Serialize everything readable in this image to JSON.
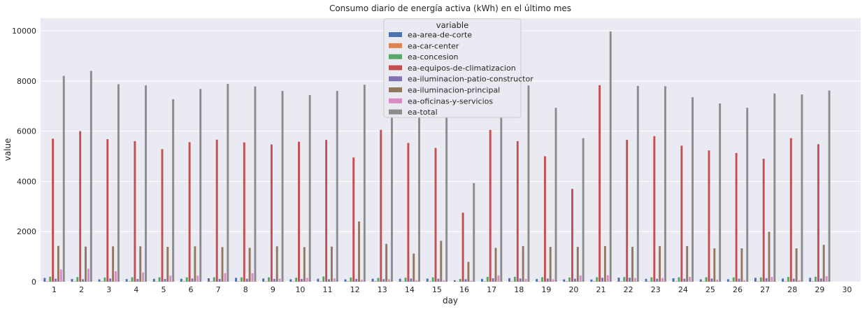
{
  "chart_data": {
    "type": "bar",
    "title": "Consumo diario de energía activa (kWh) en el último mes",
    "xlabel": "day",
    "ylabel": "value",
    "ylim": [
      0,
      10500
    ],
    "yticks": [
      0,
      2000,
      4000,
      6000,
      8000,
      10000
    ],
    "grid": true,
    "legend_title": "variable",
    "legend_position": "top-center",
    "categories": [
      "1",
      "2",
      "3",
      "4",
      "5",
      "6",
      "7",
      "8",
      "9",
      "10",
      "11",
      "12",
      "13",
      "14",
      "15",
      "16",
      "17",
      "18",
      "19",
      "20",
      "21",
      "22",
      "23",
      "24",
      "25",
      "26",
      "27",
      "28",
      "29",
      "30"
    ],
    "series": [
      {
        "name": "ea-area-de-corte",
        "color": "#4c72b0",
        "values": [
          150,
          110,
          95,
          105,
          115,
          120,
          140,
          155,
          130,
          100,
          120,
          95,
          120,
          120,
          125,
          60,
          115,
          145,
          110,
          95,
          90,
          165,
          115,
          140,
          95,
          100,
          155,
          130,
          155,
          0
        ]
      },
      {
        "name": "ea-car-center",
        "color": "#dd8452",
        "values": [
          20,
          15,
          20,
          20,
          15,
          20,
          20,
          20,
          20,
          15,
          20,
          20,
          25,
          15,
          20,
          10,
          20,
          20,
          20,
          20,
          20,
          20,
          20,
          20,
          20,
          20,
          20,
          20,
          20,
          0
        ]
      },
      {
        "name": "ea-concesion",
        "color": "#55a868",
        "values": [
          200,
          185,
          165,
          180,
          180,
          175,
          175,
          175,
          175,
          160,
          210,
          170,
          150,
          160,
          175,
          110,
          195,
          195,
          180,
          170,
          180,
          185,
          175,
          175,
          180,
          175,
          175,
          190,
          200,
          0
        ]
      },
      {
        "name": "ea-equipos-de-climatizacion",
        "color": "#c44e52",
        "values": [
          5700,
          6000,
          5680,
          5600,
          5280,
          5560,
          5660,
          5550,
          5470,
          5580,
          5650,
          4950,
          6050,
          5530,
          5330,
          2750,
          6050,
          5600,
          5000,
          3700,
          7830,
          5650,
          5800,
          5420,
          5230,
          5130,
          4900,
          5720,
          5480,
          0
        ]
      },
      {
        "name": "ea-iluminacion-patio-constructor",
        "color": "#8172b3",
        "values": [
          120,
          100,
          130,
          110,
          110,
          130,
          110,
          120,
          110,
          110,
          100,
          110,
          100,
          130,
          120,
          100,
          140,
          130,
          130,
          120,
          160,
          160,
          120,
          120,
          130,
          120,
          140,
          120,
          130,
          0
        ]
      },
      {
        "name": "ea-iluminacion-principal",
        "color": "#937860",
        "values": [
          1430,
          1400,
          1410,
          1410,
          1390,
          1410,
          1380,
          1350,
          1410,
          1380,
          1400,
          2400,
          1510,
          1120,
          1630,
          790,
          1350,
          1420,
          1390,
          1390,
          1420,
          1390,
          1420,
          1420,
          1330,
          1330,
          1990,
          1330,
          1470,
          0
        ]
      },
      {
        "name": "ea-oficinas-y-servicios",
        "color": "#da8bc3",
        "values": [
          490,
          520,
          420,
          370,
          240,
          240,
          340,
          340,
          120,
          150,
          130,
          80,
          100,
          60,
          60,
          40,
          250,
          110,
          100,
          250,
          260,
          150,
          150,
          190,
          80,
          60,
          190,
          60,
          220,
          0
        ]
      },
      {
        "name": "ea-total",
        "color": "#8c8c8c",
        "values": [
          8200,
          8400,
          7870,
          7820,
          7270,
          7680,
          7880,
          7780,
          7600,
          7440,
          7600,
          7850,
          8000,
          7500,
          7400,
          3930,
          8000,
          7820,
          6930,
          5720,
          9970,
          7800,
          7790,
          7350,
          7100,
          6930,
          7500,
          7460,
          7620,
          0
        ]
      }
    ]
  }
}
